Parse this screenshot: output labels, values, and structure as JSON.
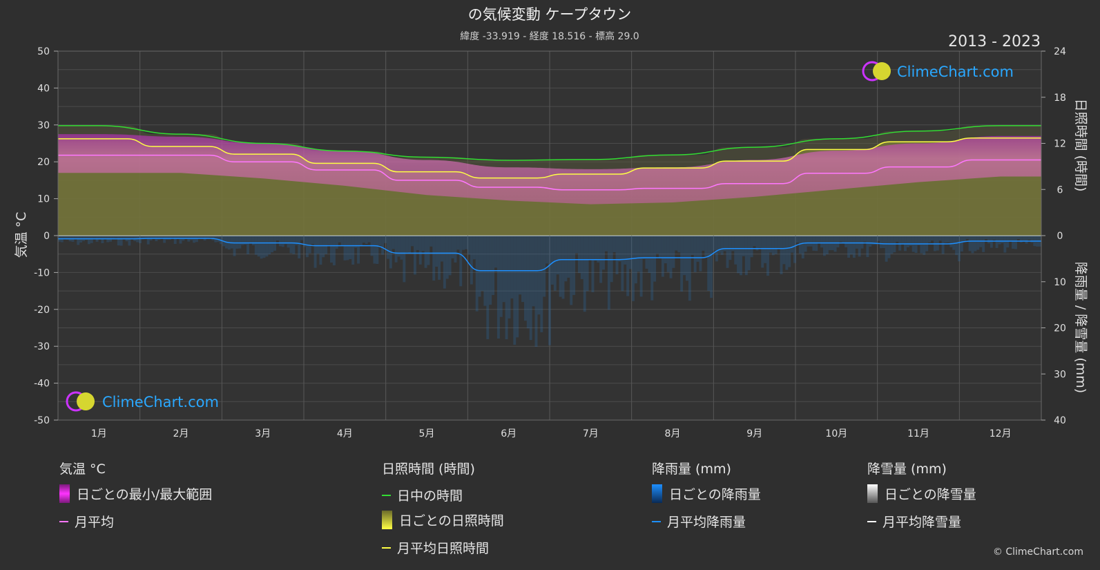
{
  "chart_data": {
    "type": "line",
    "title": "の気候変動 ケープタウン",
    "subtitle": "緯度 -33.919 - 経度 18.516 - 標高 29.0",
    "period": "2013 - 2023",
    "ylabel_left": "気温 °C",
    "ylabel_right_top": "日照時間 (時間)",
    "ylabel_right_bottom": "降雨量 / 降雪量 (mm)",
    "ylim_left": [
      -50,
      50
    ],
    "ylim_right_top": [
      0,
      24
    ],
    "ylim_right_bottom": [
      0,
      40
    ],
    "left_ticks": [
      "50",
      "40",
      "30",
      "20",
      "10",
      "0",
      "-10",
      "-20",
      "-30",
      "-40",
      "-50"
    ],
    "right_top_ticks": [
      "24",
      "18",
      "12",
      "6",
      "0"
    ],
    "right_bottom_ticks": [
      "10",
      "20",
      "30",
      "40"
    ],
    "categories": [
      "1月",
      "2月",
      "3月",
      "4月",
      "5月",
      "6月",
      "7月",
      "8月",
      "9月",
      "10月",
      "11月",
      "12月"
    ],
    "grid": true,
    "series": [
      {
        "name": "日中の時間",
        "unit": "時間",
        "color": "#33dd33",
        "values": [
          14.3,
          13.2,
          12.0,
          11.0,
          10.2,
          9.8,
          9.9,
          10.5,
          11.5,
          12.6,
          13.6,
          14.3
        ]
      },
      {
        "name": "月平均日照時間",
        "unit": "時間",
        "color": "#ffff44",
        "values": [
          12.6,
          11.6,
          10.6,
          9.4,
          8.3,
          7.5,
          8.0,
          8.8,
          9.7,
          11.2,
          12.2,
          12.7
        ]
      },
      {
        "name": "月平均",
        "unit": "°C",
        "color": "#ff77ff",
        "values": [
          21.8,
          21.8,
          20.0,
          17.8,
          15.0,
          13.1,
          12.4,
          12.8,
          14.1,
          16.9,
          18.6,
          20.5
        ]
      },
      {
        "name": "月平均降雨量",
        "unit": "mm",
        "color": "#1e90ff",
        "values": [
          0.7,
          0.6,
          1.6,
          2.2,
          3.8,
          7.6,
          5.2,
          4.8,
          2.8,
          1.6,
          1.8,
          1.2
        ]
      },
      {
        "name": "月平均降雪量",
        "unit": "mm",
        "color": "#ffffff",
        "values": [
          0,
          0,
          0,
          0,
          0,
          0,
          0,
          0,
          0,
          0,
          0,
          0
        ]
      }
    ],
    "daily_temp_range": {
      "max": [
        27.5,
        26.8,
        25.0,
        23.0,
        20.5,
        18.5,
        18.0,
        18.5,
        20.5,
        23.0,
        25.0,
        27.0
      ],
      "min": [
        17.0,
        17.0,
        15.5,
        13.5,
        11.0,
        9.5,
        8.5,
        9.0,
        10.5,
        12.5,
        14.5,
        16.0
      ]
    }
  },
  "watermark": "ClimeChart.com",
  "legend": {
    "temp": {
      "head": "気温 °C",
      "range": "日ごとの最小/最大範囲",
      "avg": "月平均"
    },
    "sun": {
      "head": "日照時間 (時間)",
      "daylight": "日中の時間",
      "daily": "日ごとの日照時間",
      "avg": "月平均日照時間"
    },
    "rain": {
      "head": "降雨量 (mm)",
      "daily": "日ごとの降雨量",
      "avg": "月平均降雨量"
    },
    "snow": {
      "head": "降雪量 (mm)",
      "daily": "日ごとの降雪量",
      "avg": "月平均降雪量"
    }
  },
  "copyright": "© ClimeChart.com"
}
